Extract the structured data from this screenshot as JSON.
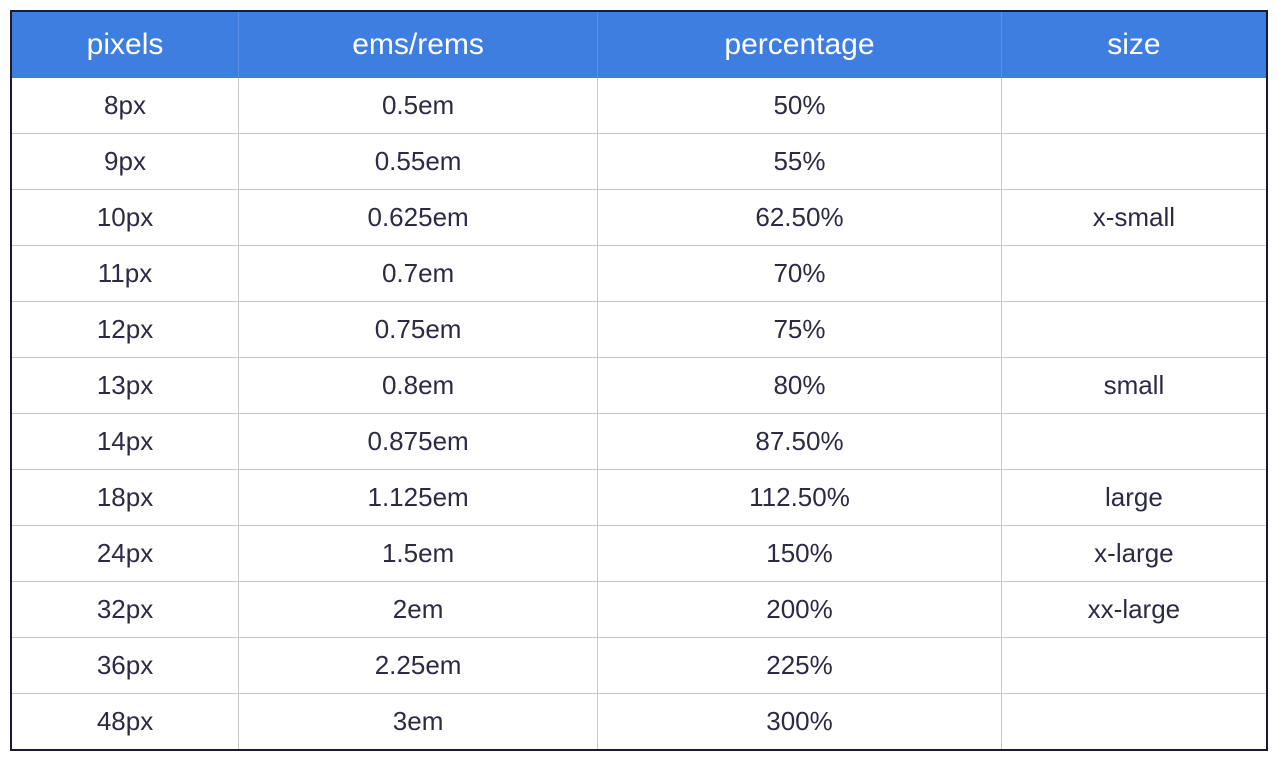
{
  "table": {
    "type": "table",
    "columns": [
      "pixels",
      "ems/rems",
      "percentage",
      "size"
    ],
    "rows": [
      [
        "8px",
        "0.5em",
        "50%",
        ""
      ],
      [
        "9px",
        "0.55em",
        "55%",
        ""
      ],
      [
        "10px",
        "0.625em",
        "62.50%",
        "x-small"
      ],
      [
        "11px",
        "0.7em",
        "70%",
        ""
      ],
      [
        "12px",
        "0.75em",
        "75%",
        ""
      ],
      [
        "13px",
        "0.8em",
        "80%",
        "small"
      ],
      [
        "14px",
        "0.875em",
        "87.50%",
        ""
      ],
      [
        "18px",
        "1.125em",
        "112.50%",
        "large"
      ],
      [
        "24px",
        "1.5em",
        "150%",
        "x-large"
      ],
      [
        "32px",
        "2em",
        "200%",
        "xx-large"
      ],
      [
        "36px",
        "2.25em",
        "225%",
        ""
      ],
      [
        "48px",
        "3em",
        "300%",
        ""
      ]
    ],
    "header_background_color": "#3e7ee0",
    "header_text_color": "#ffffff",
    "header_fontsize": 30,
    "body_text_color": "#2b2b44",
    "body_fontsize": 26,
    "border_color": "#1a1a2e",
    "cell_border_color": "#c8c8c8",
    "background_color": "#ffffff",
    "column_count": 4
  }
}
